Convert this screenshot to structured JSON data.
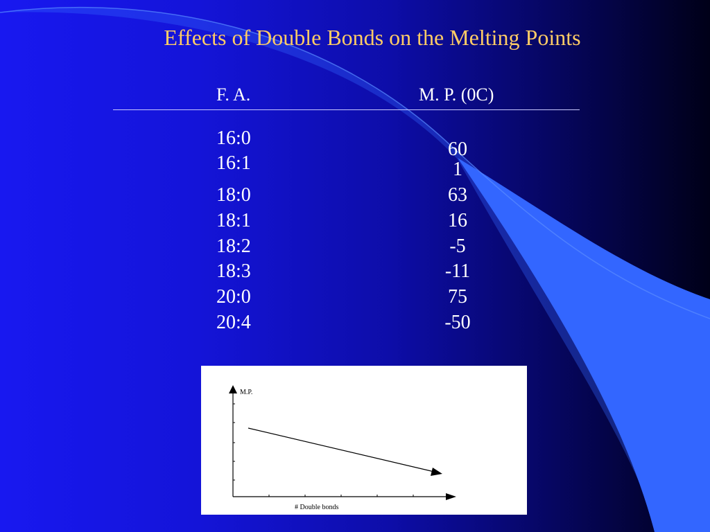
{
  "slide": {
    "title": "Effects of Double Bonds on the Melting Points",
    "colors": {
      "title": "#ffcc66",
      "text": "#ffffff",
      "accent_wave": "#3366ff"
    }
  },
  "table": {
    "headers": {
      "fa": "F. A.",
      "mp": "M. P. (0C)"
    },
    "rows": [
      {
        "fa": "16:0",
        "mp": "60"
      },
      {
        "fa": "16:1",
        "mp": "1"
      },
      {
        "fa": "18:0",
        "mp": "63"
      },
      {
        "fa": "18:1",
        "mp": "16"
      },
      {
        "fa": "18:2",
        "mp": "-5"
      },
      {
        "fa": "18:3",
        "mp": "-11"
      },
      {
        "fa": "20:0",
        "mp": "75"
      },
      {
        "fa": "20:4",
        "mp": "-50"
      }
    ]
  },
  "mini_chart": {
    "ylabel": "M.P.",
    "xlabel": "# Double bonds"
  }
}
